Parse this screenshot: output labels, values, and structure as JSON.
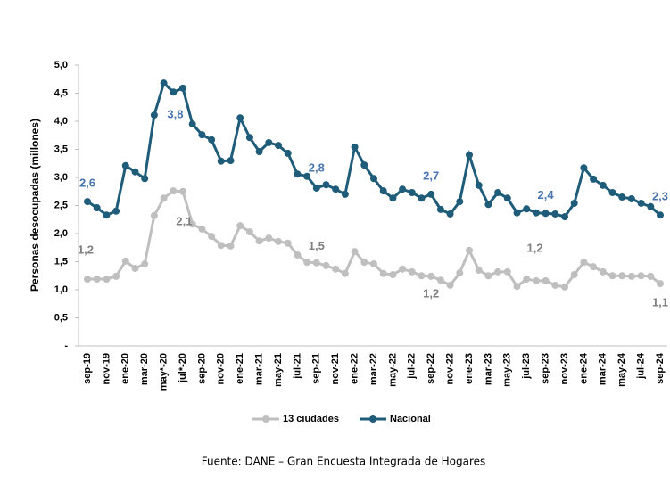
{
  "chart_data": {
    "type": "line",
    "y_label": "Personas desocupadas (millones)",
    "source": "Fuente: DANE – Gran Encuesta Integrada de Hogares",
    "categories": [
      "sep-19",
      null,
      "nov-19",
      null,
      "ene-20",
      null,
      "mar-20",
      null,
      "may*-20",
      null,
      "jul*-20",
      null,
      "sep-20",
      null,
      "nov-20",
      null,
      "ene-21",
      null,
      "mar-21",
      null,
      "may-21",
      null,
      "jul-21",
      null,
      "sep-21",
      null,
      "nov-21",
      null,
      "ene-22",
      null,
      "mar-22",
      null,
      "may-22",
      null,
      "jul-22",
      null,
      "sep-22",
      null,
      "nov-22",
      null,
      "ene-23",
      null,
      "mar-23",
      null,
      "may-23",
      null,
      "jul-23",
      null,
      "sep-23",
      null,
      "nov-23",
      null,
      "ene-24",
      null,
      "mar-24",
      null,
      "may-24",
      null,
      "jul-24",
      null,
      "sep-24"
    ],
    "series": [
      {
        "name": "13 ciudades",
        "color": "#bfbfbf",
        "label_color": "#7f7f7f",
        "values": [
          1.19,
          1.19,
          1.19,
          1.24,
          1.51,
          1.38,
          1.46,
          2.32,
          2.63,
          2.76,
          2.75,
          2.17,
          2.08,
          1.95,
          1.79,
          1.78,
          2.14,
          2.03,
          1.87,
          1.92,
          1.86,
          1.83,
          1.62,
          1.49,
          1.48,
          1.43,
          1.37,
          1.29,
          1.68,
          1.49,
          1.46,
          1.29,
          1.27,
          1.37,
          1.32,
          1.25,
          1.24,
          1.17,
          1.08,
          1.3,
          1.7,
          1.35,
          1.25,
          1.32,
          1.32,
          1.06,
          1.19,
          1.16,
          1.16,
          1.08,
          1.05,
          1.27,
          1.49,
          1.41,
          1.32,
          1.25,
          1.25,
          1.24,
          1.25,
          1.24,
          1.11
        ],
        "value_labels": [
          "1,2",
          null,
          null,
          null,
          null,
          null,
          null,
          null,
          null,
          null,
          null,
          null,
          "2,1",
          null,
          null,
          null,
          null,
          null,
          null,
          null,
          null,
          null,
          null,
          null,
          "1,5",
          null,
          null,
          null,
          null,
          null,
          null,
          null,
          null,
          null,
          null,
          null,
          "1,2",
          null,
          null,
          null,
          null,
          null,
          null,
          null,
          null,
          null,
          null,
          null,
          "1,2",
          null,
          null,
          null,
          null,
          null,
          null,
          null,
          null,
          null,
          null,
          null,
          "1,1"
        ]
      },
      {
        "name": "Nacional",
        "color": "#1f5c7a",
        "label_color": "#4a76b0",
        "values": [
          2.57,
          2.46,
          2.33,
          2.4,
          3.21,
          3.1,
          2.98,
          4.11,
          4.68,
          4.52,
          4.59,
          3.95,
          3.76,
          3.67,
          3.29,
          3.3,
          4.06,
          3.71,
          3.46,
          3.62,
          3.57,
          3.43,
          3.06,
          3.02,
          2.81,
          2.87,
          2.79,
          2.7,
          3.54,
          3.22,
          2.98,
          2.76,
          2.63,
          2.79,
          2.73,
          2.63,
          2.7,
          2.43,
          2.35,
          2.57,
          3.4,
          2.86,
          2.52,
          2.73,
          2.63,
          2.37,
          2.44,
          2.37,
          2.36,
          2.35,
          2.3,
          2.54,
          3.17,
          2.97,
          2.86,
          2.73,
          2.65,
          2.62,
          2.54,
          2.48,
          2.33
        ],
        "value_labels": [
          "2,6",
          null,
          null,
          null,
          null,
          null,
          null,
          null,
          null,
          null,
          null,
          null,
          "3,8",
          null,
          null,
          null,
          null,
          null,
          null,
          null,
          null,
          null,
          null,
          null,
          "2,8",
          null,
          null,
          null,
          null,
          null,
          null,
          null,
          null,
          null,
          null,
          null,
          "2,7",
          null,
          null,
          null,
          null,
          null,
          null,
          null,
          null,
          null,
          null,
          null,
          "2,4",
          null,
          null,
          null,
          null,
          null,
          null,
          null,
          null,
          null,
          null,
          null,
          "2,3"
        ]
      }
    ],
    "ylim": [
      0,
      5
    ],
    "yticks": [
      {
        "value": 0,
        "label": "-"
      },
      {
        "value": 0.5,
        "label": "0,5"
      },
      {
        "value": 1,
        "label": "1,0"
      },
      {
        "value": 1.5,
        "label": "1,5"
      },
      {
        "value": 2,
        "label": "2,0"
      },
      {
        "value": 2.5,
        "label": "2,5"
      },
      {
        "value": 3,
        "label": "3,0"
      },
      {
        "value": 3.5,
        "label": "3,5"
      },
      {
        "value": 4,
        "label": "4,0"
      },
      {
        "value": 4.5,
        "label": "4,5"
      },
      {
        "value": 5,
        "label": "5,0"
      }
    ],
    "legend": "bottom"
  }
}
